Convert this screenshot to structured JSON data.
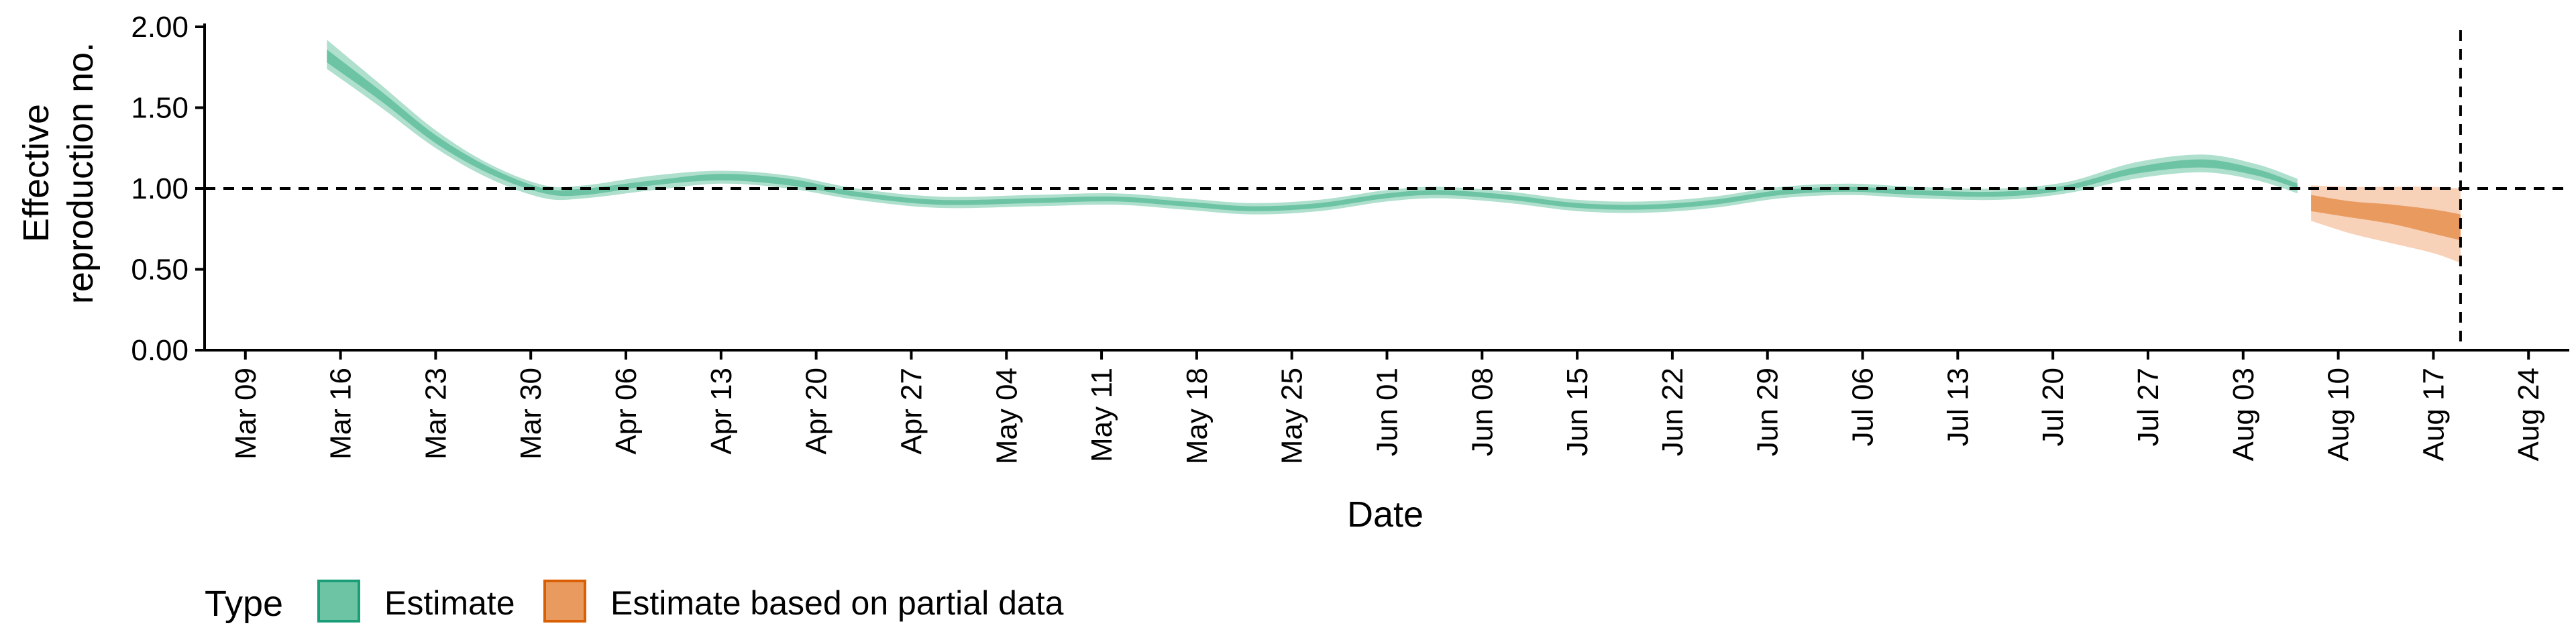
{
  "chart_data": {
    "type": "area",
    "xlabel": "Date",
    "ylabel_lines": [
      "Effective",
      "reproduction no."
    ],
    "ylim": [
      0,
      2
    ],
    "yticks": [
      "0.00",
      "0.50",
      "1.00",
      "1.50",
      "2.00"
    ],
    "ytick_values": [
      0,
      0.5,
      1.0,
      1.5,
      2.0
    ],
    "xlim": [
      "2020-03-06",
      "2020-08-27"
    ],
    "xticks": [
      {
        "date": "2020-03-09",
        "label": "Mar 09"
      },
      {
        "date": "2020-03-16",
        "label": "Mar 16"
      },
      {
        "date": "2020-03-23",
        "label": "Mar 23"
      },
      {
        "date": "2020-03-30",
        "label": "Mar 30"
      },
      {
        "date": "2020-04-06",
        "label": "Apr 06"
      },
      {
        "date": "2020-04-13",
        "label": "Apr 13"
      },
      {
        "date": "2020-04-20",
        "label": "Apr 20"
      },
      {
        "date": "2020-04-27",
        "label": "Apr 27"
      },
      {
        "date": "2020-05-04",
        "label": "May 04"
      },
      {
        "date": "2020-05-11",
        "label": "May 11"
      },
      {
        "date": "2020-05-18",
        "label": "May 18"
      },
      {
        "date": "2020-05-25",
        "label": "May 25"
      },
      {
        "date": "2020-06-01",
        "label": "Jun 01"
      },
      {
        "date": "2020-06-08",
        "label": "Jun 08"
      },
      {
        "date": "2020-06-15",
        "label": "Jun 15"
      },
      {
        "date": "2020-06-22",
        "label": "Jun 22"
      },
      {
        "date": "2020-06-29",
        "label": "Jun 29"
      },
      {
        "date": "2020-07-06",
        "label": "Jul 06"
      },
      {
        "date": "2020-07-13",
        "label": "Jul 13"
      },
      {
        "date": "2020-07-20",
        "label": "Jul 20"
      },
      {
        "date": "2020-07-27",
        "label": "Jul 27"
      },
      {
        "date": "2020-08-03",
        "label": "Aug 03"
      },
      {
        "date": "2020-08-10",
        "label": "Aug 10"
      },
      {
        "date": "2020-08-17",
        "label": "Aug 17"
      },
      {
        "date": "2020-08-24",
        "label": "Aug 24"
      }
    ],
    "reference_hline": 1.0,
    "reference_vline": "2020-08-19",
    "series": [
      {
        "name": "Estimate",
        "color": "#1b9e77",
        "outer_fill": "#a6dcc8",
        "inner_fill": "#6cc4a4",
        "points": [
          {
            "date": "2020-03-15",
            "lo90": 1.74,
            "lo50": 1.78,
            "hi50": 1.86,
            "hi90": 1.92
          },
          {
            "date": "2020-03-19",
            "lo90": 1.5,
            "lo50": 1.54,
            "hi50": 1.6,
            "hi90": 1.64
          },
          {
            "date": "2020-03-23",
            "lo90": 1.25,
            "lo50": 1.28,
            "hi50": 1.33,
            "hi90": 1.36
          },
          {
            "date": "2020-03-27",
            "lo90": 1.06,
            "lo50": 1.09,
            "hi50": 1.13,
            "hi90": 1.15
          },
          {
            "date": "2020-03-31",
            "lo90": 0.94,
            "lo50": 0.97,
            "hi50 ": 1.0,
            "hi50": 1.0,
            "hi90": 1.02
          },
          {
            "date": "2020-04-03",
            "lo90": 0.94,
            "lo50": 0.96,
            "hi50": 1.0,
            "hi90": 1.02
          },
          {
            "date": "2020-04-08",
            "lo90": 0.99,
            "lo50": 1.02,
            "hi50": 1.05,
            "hi90": 1.08
          },
          {
            "date": "2020-04-13",
            "lo90": 1.03,
            "lo50": 1.05,
            "hi50": 1.09,
            "hi90": 1.11
          },
          {
            "date": "2020-04-18",
            "lo90": 1.0,
            "lo50": 1.02,
            "hi50": 1.06,
            "hi90": 1.08
          },
          {
            "date": "2020-04-23",
            "lo90": 0.93,
            "lo50": 0.95,
            "hi50": 0.98,
            "hi90": 1.0
          },
          {
            "date": "2020-04-29",
            "lo90": 0.88,
            "lo50": 0.9,
            "hi50": 0.93,
            "hi90": 0.95
          },
          {
            "date": "2020-05-06",
            "lo90": 0.89,
            "lo50": 0.91,
            "hi50": 0.94,
            "hi90": 0.96
          },
          {
            "date": "2020-05-12",
            "lo90": 0.9,
            "lo50": 0.92,
            "hi50": 0.95,
            "hi90": 0.97
          },
          {
            "date": "2020-05-17",
            "lo90": 0.87,
            "lo50": 0.89,
            "hi50": 0.92,
            "hi90": 0.94
          },
          {
            "date": "2020-05-22",
            "lo90": 0.84,
            "lo50": 0.86,
            "hi50": 0.89,
            "hi90": 0.91
          },
          {
            "date": "2020-05-27",
            "lo90": 0.86,
            "lo50": 0.88,
            "hi50": 0.91,
            "hi90": 0.93
          },
          {
            "date": "2020-06-01",
            "lo90": 0.92,
            "lo50": 0.94,
            "hi50": 0.97,
            "hi90": 0.99
          },
          {
            "date": "2020-06-05",
            "lo90": 0.94,
            "lo50": 0.96,
            "hi50": 0.99,
            "hi90": 1.01
          },
          {
            "date": "2020-06-10",
            "lo90": 0.91,
            "lo50": 0.93,
            "hi50": 0.96,
            "hi90": 0.98
          },
          {
            "date": "2020-06-15",
            "lo90": 0.86,
            "lo50": 0.88,
            "hi50": 0.91,
            "hi90": 0.93
          },
          {
            "date": "2020-06-20",
            "lo90": 0.85,
            "lo50": 0.87,
            "hi50": 0.9,
            "hi90": 0.92
          },
          {
            "date": "2020-06-25",
            "lo90": 0.88,
            "lo50": 0.9,
            "hi50": 0.93,
            "hi90": 0.95
          },
          {
            "date": "2020-06-30",
            "lo90": 0.94,
            "lo50": 0.96,
            "hi50": 0.99,
            "hi90": 1.01
          },
          {
            "date": "2020-07-05",
            "lo90": 0.96,
            "lo50": 0.98,
            "hi50": 1.01,
            "hi90": 1.03
          },
          {
            "date": "2020-07-10",
            "lo90": 0.94,
            "lo50": 0.96,
            "hi50": 0.99,
            "hi90": 1.01
          },
          {
            "date": "2020-07-16",
            "lo90": 0.93,
            "lo50": 0.95,
            "hi50": 0.98,
            "hi90": 1.0
          },
          {
            "date": "2020-07-21",
            "lo90": 0.97,
            "lo50": 0.99,
            "hi50": 1.02,
            "hi90": 1.04
          },
          {
            "date": "2020-07-26",
            "lo90": 1.06,
            "lo50": 1.09,
            "hi50": 1.13,
            "hi90": 1.16
          },
          {
            "date": "2020-07-31",
            "lo90": 1.1,
            "lo50": 1.13,
            "hi50": 1.18,
            "hi90": 1.21
          },
          {
            "date": "2020-08-04",
            "lo90": 1.05,
            "lo50": 1.08,
            "hi50": 1.12,
            "hi90": 1.15
          },
          {
            "date": "2020-08-07",
            "lo90": 0.97,
            "lo50": 1.0,
            "hi50": 1.03,
            "hi90": 1.06
          }
        ]
      },
      {
        "name": "Estimate based on partial data",
        "color": "#d95f02",
        "outer_fill": "#f6cdb0",
        "inner_fill": "#e99a5f",
        "points": [
          {
            "date": "2020-08-08",
            "lo90": 0.8,
            "lo50": 0.86,
            "hi50": 0.96,
            "hi90": 1.02
          },
          {
            "date": "2020-08-11",
            "lo90": 0.72,
            "lo50": 0.82,
            "hi50": 0.92,
            "hi90": 1.01
          },
          {
            "date": "2020-08-14",
            "lo90": 0.66,
            "lo50": 0.78,
            "hi50": 0.9,
            "hi90": 1.01
          },
          {
            "date": "2020-08-17",
            "lo90": 0.6,
            "lo50": 0.72,
            "hi50": 0.87,
            "hi90": 1.01
          },
          {
            "date": "2020-08-19",
            "lo90": 0.54,
            "lo50": 0.68,
            "hi50": 0.84,
            "hi90": 1.0
          }
        ]
      }
    ],
    "legend": {
      "title": "Type",
      "position": "bottom",
      "entries": [
        "Estimate",
        "Estimate based on partial data"
      ]
    }
  }
}
